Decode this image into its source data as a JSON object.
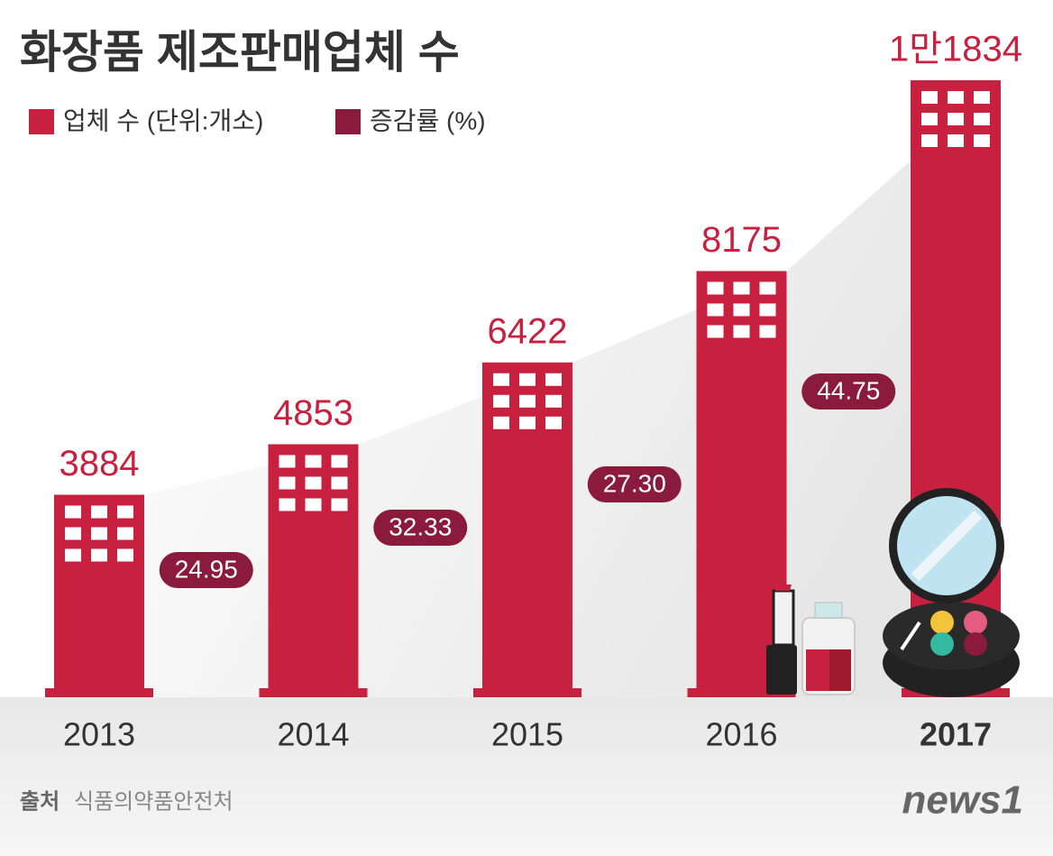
{
  "chart_data": {
    "type": "bar",
    "title": "화장품 제조판매업체 수",
    "categories": [
      "2013",
      "2014",
      "2015",
      "2016",
      "2017"
    ],
    "series": [
      {
        "name": "업체 수 (단위:개소)",
        "color": "#c8213f",
        "values": [
          3884,
          4853,
          6422,
          8175,
          11834
        ],
        "value_labels": [
          "3884",
          "4853",
          "6422",
          "8175",
          "1만1834"
        ]
      },
      {
        "name": "증감률 (%)",
        "color": "#8b1a3f",
        "values": [
          null,
          24.95,
          32.33,
          27.3,
          44.75
        ],
        "value_labels": [
          null,
          "24.95",
          "32.33",
          "27.30",
          "44.75"
        ]
      }
    ],
    "source_label": "출처",
    "source": "식품의약품안전처",
    "logo": "news1"
  }
}
